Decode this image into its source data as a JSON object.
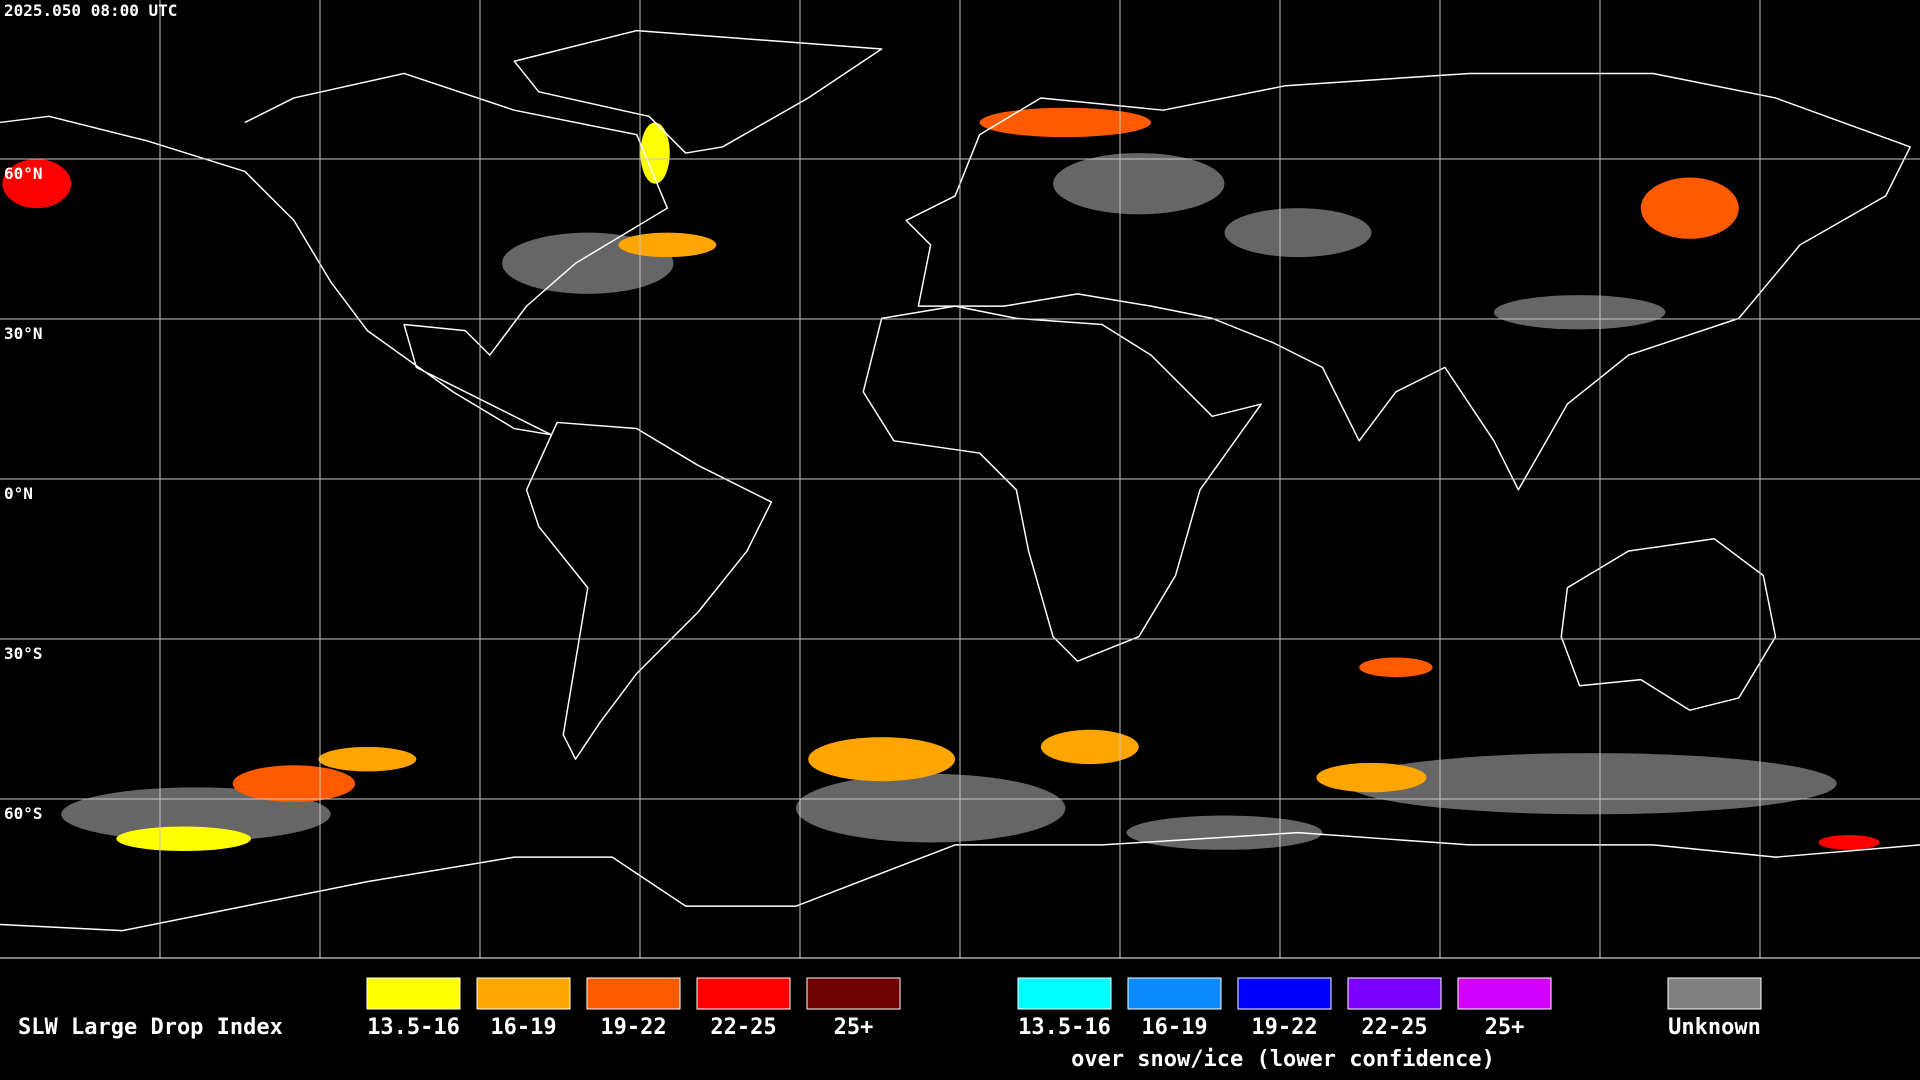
{
  "header": {
    "timestamp": "2025.050 08:00 UTC"
  },
  "map": {
    "latitude_labels": [
      "60°N",
      "30°N",
      "0°N",
      "30°S",
      "60°S"
    ]
  },
  "legend": {
    "title": "SLW Large Drop Index",
    "groups": [
      {
        "items": [
          {
            "label": "13.5-16",
            "color": "#ffff00"
          },
          {
            "label": "16-19",
            "color": "#ffa500"
          },
          {
            "label": "19-22",
            "color": "#ff5a00"
          },
          {
            "label": "22-25",
            "color": "#ff0000"
          },
          {
            "label": "25+",
            "color": "#6e0000"
          }
        ]
      },
      {
        "items": [
          {
            "label": "13.5-16",
            "color": "#00ffff"
          },
          {
            "label": "16-19",
            "color": "#0a8cff"
          },
          {
            "label": "19-22",
            "color": "#0000ff"
          },
          {
            "label": "22-25",
            "color": "#7d00ff"
          },
          {
            "label": "25+",
            "color": "#d200ff"
          }
        ],
        "caption": "over snow/ice (lower confidence)"
      }
    ],
    "unknown": {
      "label": "Unknown",
      "color": "#808080"
    }
  }
}
